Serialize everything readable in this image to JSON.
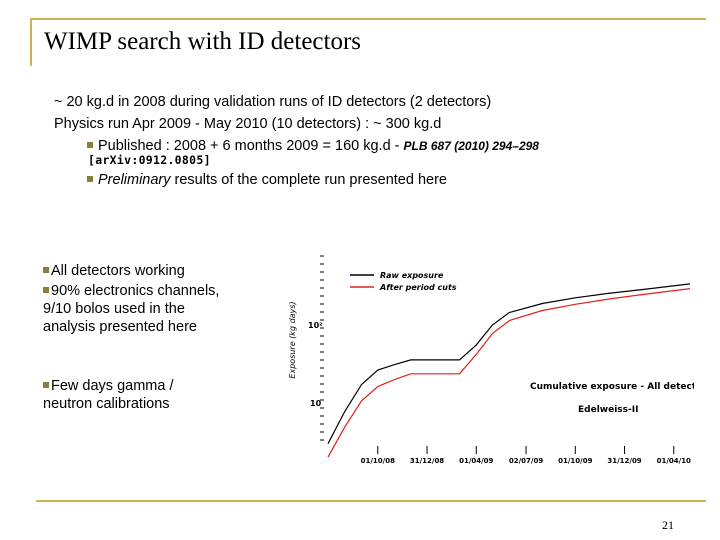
{
  "title": "WIMP search with ID detectors",
  "lines": {
    "l1": "~ 20 kg.d in 2008 during validation runs of ID detectors (2 detectors)",
    "l2": "Physics run Apr 2009 - May 2010 (10 detectors) : ~ 300 kg.d",
    "l3_text": "Published : 2008 + 6 months 2009 = 160 kg.d - ",
    "l3_ref": "PLB 687 (2010) 294–298",
    "arxiv": "[arXiv:0912.0805]",
    "l4_italic": "Preliminary",
    "l4_rest": " results of the complete run presented here"
  },
  "side": {
    "s1": "All detectors working",
    "s2a": "90% electronics channels, 9/10 bolos used in the analysis presented here",
    "s3": "Few days gamma / neutron calibrations"
  },
  "page_number": "21",
  "colors": {
    "rule": "#c9b34e",
    "bullet": "#8b7d3a",
    "raw": "#000000",
    "cuts": "#e0201a"
  },
  "chart_data": {
    "type": "line",
    "ylabel": "Exposure (kg days)",
    "y_scale": "log",
    "y_ticks": [
      "10",
      "10²"
    ],
    "x_ticks": [
      "01/10/08",
      "31/12/08",
      "01/04/09",
      "02/07/09",
      "01/10/09",
      "31/12/09",
      "01/04/10"
    ],
    "legend": [
      "Raw exposure",
      "After period cuts"
    ],
    "annotation": "Cumulative exposure - All detectors",
    "experiment": "Edelweiss-II",
    "series": [
      {
        "name": "Raw exposure",
        "x": [
          "2008-07-01",
          "2008-08-01",
          "2008-09-01",
          "2008-10-01",
          "2008-11-01",
          "2008-12-01",
          "2009-01-15",
          "2009-03-01",
          "2009-04-01",
          "2009-05-01",
          "2009-06-01",
          "2009-08-01",
          "2009-10-01",
          "2009-12-01",
          "2010-02-01",
          "2010-05-01"
        ],
        "values": [
          3,
          8,
          18,
          28,
          33,
          38,
          38,
          38,
          60,
          110,
          160,
          210,
          250,
          285,
          320,
          380
        ]
      },
      {
        "name": "After period cuts",
        "x": [
          "2008-07-01",
          "2008-08-01",
          "2008-09-01",
          "2008-10-01",
          "2008-11-01",
          "2008-12-01",
          "2009-01-15",
          "2009-03-01",
          "2009-04-01",
          "2009-05-01",
          "2009-06-01",
          "2009-08-01",
          "2009-10-01",
          "2009-12-01",
          "2010-02-01",
          "2010-05-01"
        ],
        "values": [
          2,
          5,
          11,
          17,
          21,
          25,
          25,
          25,
          45,
          85,
          125,
          170,
          205,
          240,
          275,
          330
        ]
      }
    ]
  }
}
